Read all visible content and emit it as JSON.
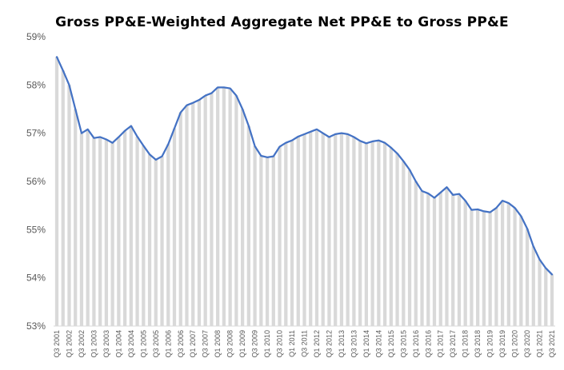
{
  "chart_data": {
    "type": "line",
    "title": "Gross PP&E-Weighted Aggregate Net PP&E to Gross PP&E",
    "xlabel": "",
    "ylabel": "",
    "ylim": [
      53,
      59
    ],
    "y_ticks": [
      "53%",
      "54%",
      "55%",
      "56%",
      "57%",
      "58%",
      "59%"
    ],
    "grid": false,
    "legend": "none",
    "fill_style": "vertical hatched area under line",
    "colors": {
      "line": "#4472C4",
      "fill": "#D9D9D9",
      "axis": "#D9D9D9",
      "text": "#595959"
    },
    "x_labels": [
      "Q3 2001",
      "Q1 2002",
      "Q3 2002",
      "Q1 2003",
      "Q3 2003",
      "Q1 2004",
      "Q3 2004",
      "Q1 2005",
      "Q3 2005",
      "Q1 2006",
      "Q3 2006",
      "Q1 2007",
      "Q3 2007",
      "Q1 2008",
      "Q3 2008",
      "Q1 2009",
      "Q3 2009",
      "Q1 2010",
      "Q3 2010",
      "Q1 2011",
      "Q3 2011",
      "Q1 2012",
      "Q3 2012",
      "Q1 2013",
      "Q3 2013",
      "Q1 2014",
      "Q3 2014",
      "Q1 2015",
      "Q3 2015",
      "Q1 2016",
      "Q3 2016",
      "Q1 2017",
      "Q3 2017",
      "Q1 2018",
      "Q3 2018",
      "Q1 2019",
      "Q3 2019",
      "Q1 2020",
      "Q3 2020",
      "Q1 2021",
      "Q3 2021"
    ],
    "series": [
      {
        "values": [
          58.58,
          58.3,
          58.0,
          57.5,
          57.0,
          57.08,
          56.9,
          56.92,
          56.87,
          56.8,
          56.92,
          57.05,
          57.15,
          56.93,
          56.74,
          56.56,
          56.45,
          56.52,
          56.77,
          57.1,
          57.43,
          57.58,
          57.63,
          57.69,
          57.78,
          57.83,
          57.95,
          57.95,
          57.93,
          57.78,
          57.5,
          57.15,
          56.73,
          56.53,
          56.5,
          56.52,
          56.72,
          56.8,
          56.85,
          56.93,
          56.98,
          57.03,
          57.08,
          57.0,
          56.92,
          56.98,
          57.0,
          56.98,
          56.92,
          56.84,
          56.79,
          56.83,
          56.85,
          56.8,
          56.7,
          56.58,
          56.42,
          56.24,
          56.0,
          55.8,
          55.75,
          55.66,
          55.77,
          55.88,
          55.72,
          55.74,
          55.6,
          55.41,
          55.42,
          55.38,
          55.36,
          55.45,
          55.6,
          55.55,
          55.45,
          55.28,
          55.02,
          54.65,
          54.38,
          54.2,
          54.07
        ]
      }
    ]
  }
}
